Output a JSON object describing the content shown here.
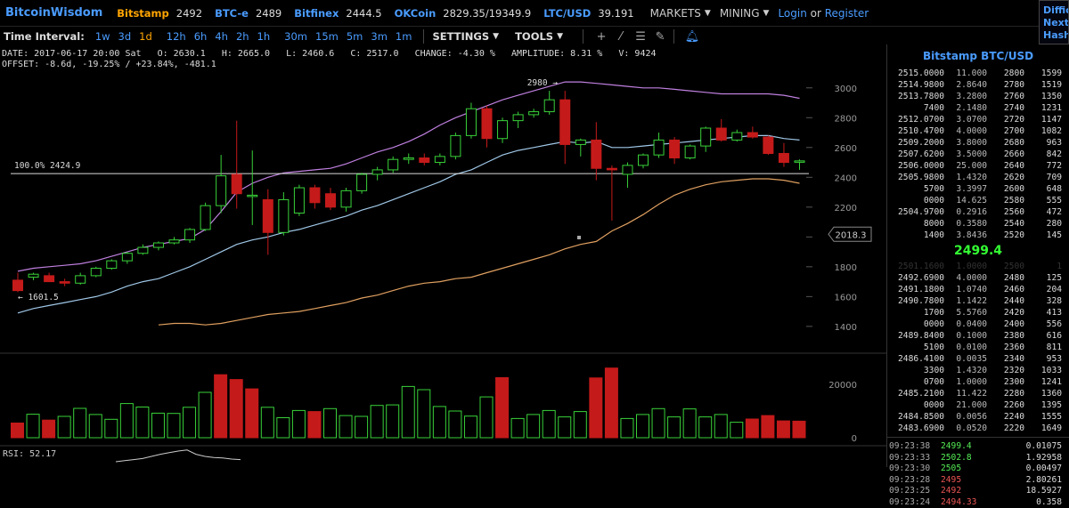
{
  "nav": {
    "logo": "BitcoinWisdom",
    "markets": [
      {
        "name": "Bitstamp",
        "price": "2492",
        "color": "#ffa500"
      },
      {
        "name": "BTC-e",
        "price": "2489",
        "color": "#4a9cff"
      },
      {
        "name": "Bitfinex",
        "price": "2444.5",
        "color": "#4a9cff"
      },
      {
        "name": "OKCoin",
        "price": "2829.35/19349.9",
        "color": "#4a9cff"
      },
      {
        "name": "LTC/USD",
        "price": "39.191",
        "color": "#4a9cff"
      }
    ],
    "markets_menu": "MARKETS",
    "mining_menu": "MINING",
    "login": "Login",
    "or": "or",
    "register": "Register",
    "corner_lines": [
      "Diffic",
      "Next:",
      "Hash R"
    ]
  },
  "toolbar": {
    "label": "Time Interval:",
    "intervals": [
      "1w",
      "3d",
      "1d",
      "12h",
      "6h",
      "4h",
      "2h",
      "1h",
      "30m",
      "15m",
      "5m",
      "3m",
      "1m"
    ],
    "active_interval": "1d",
    "settings": "SETTINGS",
    "tools": "TOOLS",
    "icons": [
      "crosshair-icon",
      "line-icon",
      "menu-icon",
      "ruler-icon",
      "alarm-icon"
    ]
  },
  "info": {
    "line1": "DATE: 2017-06-17 20:00 Sat   O: 2630.1   H: 2665.0   L: 2460.6   C: 2517.0   CHANGE: -4.30 %   AMPLITUDE: 8.31 %   V: 9424",
    "line2": "OFFSET: -8.6d, -19.25% / +23.84%, -481.1"
  },
  "chart_data": {
    "type": "candlestick",
    "price_ylim": [
      1250,
      3100
    ],
    "price_ticks": [
      1400,
      1600,
      1800,
      2000,
      2200,
      2400,
      2600,
      2800,
      3000
    ],
    "volume_ticks": [
      0,
      20000
    ],
    "volume_ylim": [
      0,
      30000
    ],
    "candles": [
      {
        "o": 1710,
        "h": 1760,
        "l": 1630,
        "c": 1640
      },
      {
        "o": 1730,
        "h": 1760,
        "l": 1710,
        "c": 1750
      },
      {
        "o": 1740,
        "h": 1760,
        "l": 1700,
        "c": 1700
      },
      {
        "o": 1700,
        "h": 1720,
        "l": 1670,
        "c": 1690
      },
      {
        "o": 1690,
        "h": 1760,
        "l": 1680,
        "c": 1740
      },
      {
        "o": 1740,
        "h": 1800,
        "l": 1730,
        "c": 1790
      },
      {
        "o": 1790,
        "h": 1850,
        "l": 1780,
        "c": 1840
      },
      {
        "o": 1840,
        "h": 1900,
        "l": 1820,
        "c": 1890
      },
      {
        "o": 1890,
        "h": 1950,
        "l": 1880,
        "c": 1930
      },
      {
        "o": 1930,
        "h": 1970,
        "l": 1910,
        "c": 1960
      },
      {
        "o": 1960,
        "h": 2000,
        "l": 1950,
        "c": 1980
      },
      {
        "o": 1980,
        "h": 2060,
        "l": 1960,
        "c": 2050
      },
      {
        "o": 2050,
        "h": 2230,
        "l": 2040,
        "c": 2210
      },
      {
        "o": 2210,
        "h": 2550,
        "l": 2160,
        "c": 2410
      },
      {
        "o": 2420,
        "h": 2780,
        "l": 2190,
        "c": 2290
      },
      {
        "o": 2280,
        "h": 2580,
        "l": 2080,
        "c": 2280
      },
      {
        "o": 2250,
        "h": 2320,
        "l": 1880,
        "c": 2030
      },
      {
        "o": 2030,
        "h": 2300,
        "l": 2010,
        "c": 2250
      },
      {
        "o": 2160,
        "h": 2350,
        "l": 2140,
        "c": 2330
      },
      {
        "o": 2330,
        "h": 2350,
        "l": 2190,
        "c": 2230
      },
      {
        "o": 2290,
        "h": 2330,
        "l": 2180,
        "c": 2200
      },
      {
        "o": 2200,
        "h": 2330,
        "l": 2170,
        "c": 2310
      },
      {
        "o": 2310,
        "h": 2430,
        "l": 2290,
        "c": 2420
      },
      {
        "o": 2420,
        "h": 2470,
        "l": 2380,
        "c": 2450
      },
      {
        "o": 2450,
        "h": 2540,
        "l": 2430,
        "c": 2520
      },
      {
        "o": 2520,
        "h": 2560,
        "l": 2490,
        "c": 2530
      },
      {
        "o": 2530,
        "h": 2560,
        "l": 2480,
        "c": 2500
      },
      {
        "o": 2500,
        "h": 2560,
        "l": 2480,
        "c": 2540
      },
      {
        "o": 2540,
        "h": 2700,
        "l": 2520,
        "c": 2680
      },
      {
        "o": 2680,
        "h": 2900,
        "l": 2660,
        "c": 2860
      },
      {
        "o": 2860,
        "h": 2880,
        "l": 2600,
        "c": 2660
      },
      {
        "o": 2660,
        "h": 2800,
        "l": 2630,
        "c": 2780
      },
      {
        "o": 2780,
        "h": 2840,
        "l": 2730,
        "c": 2820
      },
      {
        "o": 2820,
        "h": 2860,
        "l": 2800,
        "c": 2840
      },
      {
        "o": 2840,
        "h": 2980,
        "l": 2820,
        "c": 2920
      },
      {
        "o": 2920,
        "h": 2980,
        "l": 2490,
        "c": 2620
      },
      {
        "o": 2620,
        "h": 2660,
        "l": 2540,
        "c": 2650
      },
      {
        "o": 2650,
        "h": 2770,
        "l": 2380,
        "c": 2460
      },
      {
        "o": 2460,
        "h": 2480,
        "l": 2110,
        "c": 2450
      },
      {
        "o": 2420,
        "h": 2500,
        "l": 2330,
        "c": 2480
      },
      {
        "o": 2480,
        "h": 2560,
        "l": 2460,
        "c": 2550
      },
      {
        "o": 2550,
        "h": 2700,
        "l": 2530,
        "c": 2650
      },
      {
        "o": 2650,
        "h": 2670,
        "l": 2490,
        "c": 2530
      },
      {
        "o": 2530,
        "h": 2620,
        "l": 2520,
        "c": 2610
      },
      {
        "o": 2610,
        "h": 2740,
        "l": 2570,
        "c": 2730
      },
      {
        "o": 2730,
        "h": 2790,
        "l": 2640,
        "c": 2650
      },
      {
        "o": 2650,
        "h": 2720,
        "l": 2640,
        "c": 2700
      },
      {
        "o": 2700,
        "h": 2740,
        "l": 2660,
        "c": 2670
      },
      {
        "o": 2670,
        "h": 2680,
        "l": 2550,
        "c": 2560
      },
      {
        "o": 2560,
        "h": 2630,
        "l": 2470,
        "c": 2500
      },
      {
        "o": 2510,
        "h": 2520,
        "l": 2450,
        "c": 2510
      }
    ],
    "volumes": [
      {
        "v": 5500,
        "up": false
      },
      {
        "v": 8800,
        "up": true
      },
      {
        "v": 6600,
        "up": false
      },
      {
        "v": 8000,
        "up": true
      },
      {
        "v": 11000,
        "up": true
      },
      {
        "v": 8700,
        "up": true
      },
      {
        "v": 6900,
        "up": true
      },
      {
        "v": 12800,
        "up": true
      },
      {
        "v": 11500,
        "up": true
      },
      {
        "v": 9200,
        "up": true
      },
      {
        "v": 9100,
        "up": true
      },
      {
        "v": 11400,
        "up": true
      },
      {
        "v": 17000,
        "up": true
      },
      {
        "v": 23600,
        "up": false
      },
      {
        "v": 21800,
        "up": false
      },
      {
        "v": 18300,
        "up": false
      },
      {
        "v": 11400,
        "up": true
      },
      {
        "v": 7500,
        "up": true
      },
      {
        "v": 10200,
        "up": true
      },
      {
        "v": 9800,
        "up": false
      },
      {
        "v": 10900,
        "up": true
      },
      {
        "v": 8300,
        "up": true
      },
      {
        "v": 8000,
        "up": true
      },
      {
        "v": 12100,
        "up": true
      },
      {
        "v": 12300,
        "up": true
      },
      {
        "v": 19200,
        "up": true
      },
      {
        "v": 18000,
        "up": true
      },
      {
        "v": 11700,
        "up": true
      },
      {
        "v": 10000,
        "up": true
      },
      {
        "v": 8100,
        "up": true
      },
      {
        "v": 15300,
        "up": true
      },
      {
        "v": 22500,
        "up": false
      },
      {
        "v": 7200,
        "up": true
      },
      {
        "v": 8700,
        "up": true
      },
      {
        "v": 10200,
        "up": true
      },
      {
        "v": 7800,
        "up": true
      },
      {
        "v": 9800,
        "up": true
      },
      {
        "v": 22400,
        "up": false
      },
      {
        "v": 26100,
        "up": false
      },
      {
        "v": 7200,
        "up": true
      },
      {
        "v": 8700,
        "up": true
      },
      {
        "v": 10900,
        "up": true
      },
      {
        "v": 7800,
        "up": true
      },
      {
        "v": 10800,
        "up": true
      },
      {
        "v": 7800,
        "up": true
      },
      {
        "v": 8700,
        "up": true
      },
      {
        "v": 5800,
        "up": true
      },
      {
        "v": 7000,
        "up": false
      },
      {
        "v": 8300,
        "up": false
      },
      {
        "v": 6300,
        "up": false
      },
      {
        "v": 6200,
        "up": false
      }
    ],
    "bands_mid": [
      1490,
      1520,
      1540,
      1560,
      1580,
      1600,
      1630,
      1670,
      1700,
      1720,
      1760,
      1800,
      1850,
      1900,
      1950,
      1980,
      2000,
      2030,
      2050,
      2080,
      2110,
      2140,
      2180,
      2210,
      2250,
      2290,
      2330,
      2370,
      2420,
      2450,
      2500,
      2550,
      2580,
      2600,
      2620,
      2640,
      2630,
      2640,
      2600,
      2600,
      2610,
      2620,
      2630,
      2640,
      2650,
      2660,
      2670,
      2680,
      2680,
      2660,
      2650
    ],
    "bands_upper": [
      1770,
      1790,
      1800,
      1810,
      1820,
      1840,
      1870,
      1900,
      1930,
      1950,
      1970,
      1990,
      2050,
      2170,
      2300,
      2360,
      2400,
      2430,
      2440,
      2450,
      2460,
      2490,
      2530,
      2570,
      2600,
      2640,
      2690,
      2750,
      2800,
      2840,
      2880,
      2920,
      2950,
      2980,
      3010,
      3040,
      3040,
      3030,
      3020,
      3010,
      3000,
      3000,
      2990,
      2980,
      2970,
      2960,
      2960,
      2960,
      2960,
      2950,
      2930
    ],
    "bands_lower": [
      null,
      null,
      null,
      null,
      null,
      null,
      null,
      null,
      null,
      1410,
      1420,
      1420,
      1410,
      1420,
      1440,
      1460,
      1480,
      1490,
      1500,
      1520,
      1540,
      1560,
      1590,
      1610,
      1640,
      1670,
      1690,
      1700,
      1720,
      1730,
      1760,
      1790,
      1820,
      1850,
      1880,
      1920,
      1950,
      1970,
      2040,
      2090,
      2150,
      2220,
      2280,
      2320,
      2350,
      2370,
      2380,
      2390,
      2390,
      2380,
      2360
    ],
    "horizontal_line": {
      "value": 2424.9,
      "label": "100.0% 2424.9"
    },
    "annotation_high": {
      "label": "2980 →",
      "index": 34
    },
    "annotation_low": {
      "label": "← 1601.5",
      "index": 0
    },
    "current_price_tag": "2018.3",
    "rsi_label": "RSI: 52.17",
    "rsi": [
      10,
      12,
      14,
      16,
      20,
      24,
      27,
      30,
      32,
      24,
      20,
      18,
      17,
      15,
      14
    ]
  },
  "panel": {
    "title": "Bitstamp BTC/USD",
    "asks": [
      [
        "2515.0000",
        "11.000",
        "2800",
        "1599"
      ],
      [
        "2514.9800",
        "2.8640",
        "2780",
        "1519"
      ],
      [
        "2513.7800",
        "3.2800",
        "2760",
        "1350"
      ],
      [
        "7400",
        "2.1480",
        "2740",
        "1231"
      ],
      [
        "2512.0700",
        "3.0700",
        "2720",
        "1147"
      ],
      [
        "2510.4700",
        "4.0000",
        "2700",
        "1082"
      ],
      [
        "2509.2000",
        "3.8000",
        "2680",
        "963"
      ],
      [
        "2507.6200",
        "3.5000",
        "2660",
        "842"
      ],
      [
        "2506.0000",
        "25.000",
        "2640",
        "772"
      ],
      [
        "2505.9800",
        "1.4320",
        "2620",
        "709"
      ],
      [
        "5700",
        "3.3997",
        "2600",
        "648"
      ],
      [
        "0000",
        "14.625",
        "2580",
        "555"
      ],
      [
        "2504.9700",
        "0.2916",
        "2560",
        "472"
      ],
      [
        "8000",
        "0.3580",
        "2540",
        "280"
      ],
      [
        "1400",
        "3.8436",
        "2520",
        "145"
      ]
    ],
    "last_price": "2499.4",
    "mid_row": [
      "2501.1600",
      "1.0000",
      "2500",
      "1"
    ],
    "bids": [
      [
        "2492.6900",
        "4.0000",
        "2480",
        "125"
      ],
      [
        "2491.1800",
        "1.0740",
        "2460",
        "204"
      ],
      [
        "2490.7800",
        "1.1422",
        "2440",
        "328"
      ],
      [
        "1700",
        "5.5760",
        "2420",
        "413"
      ],
      [
        "0000",
        "0.0400",
        "2400",
        "556"
      ],
      [
        "2489.8400",
        "0.1000",
        "2380",
        "616"
      ],
      [
        "5100",
        "0.0100",
        "2360",
        "811"
      ],
      [
        "2486.4100",
        "0.0035",
        "2340",
        "953"
      ],
      [
        "3300",
        "1.4320",
        "2320",
        "1033"
      ],
      [
        "0700",
        "1.0000",
        "2300",
        "1241"
      ],
      [
        "2485.2100",
        "11.422",
        "2280",
        "1360"
      ],
      [
        "0000",
        "21.000",
        "2260",
        "1395"
      ],
      [
        "2484.8500",
        "0.0056",
        "2240",
        "1555"
      ],
      [
        "2483.6900",
        "0.0520",
        "2220",
        "1649"
      ]
    ],
    "trades": [
      {
        "time": "09:23:38",
        "price": "2499.4",
        "qty": "0.01075",
        "dir": "up"
      },
      {
        "time": "09:23:33",
        "price": "2502.8",
        "qty": "1.92958",
        "dir": "up"
      },
      {
        "time": "09:23:30",
        "price": "2505",
        "qty": "0.00497",
        "dir": "up"
      },
      {
        "time": "09:23:28",
        "price": "2495",
        "qty": "2.80261",
        "dir": "dn"
      },
      {
        "time": "09:23:25",
        "price": "2492",
        "qty": "18.5927",
        "dir": "dn"
      },
      {
        "time": "09:23:24",
        "price": "2494.33",
        "qty": "0.358",
        "dir": "dn"
      }
    ]
  },
  "colors": {
    "up": "#39d139",
    "down": "#c41a1a",
    "accent": "#4a9cff",
    "active": "#ffa500"
  }
}
